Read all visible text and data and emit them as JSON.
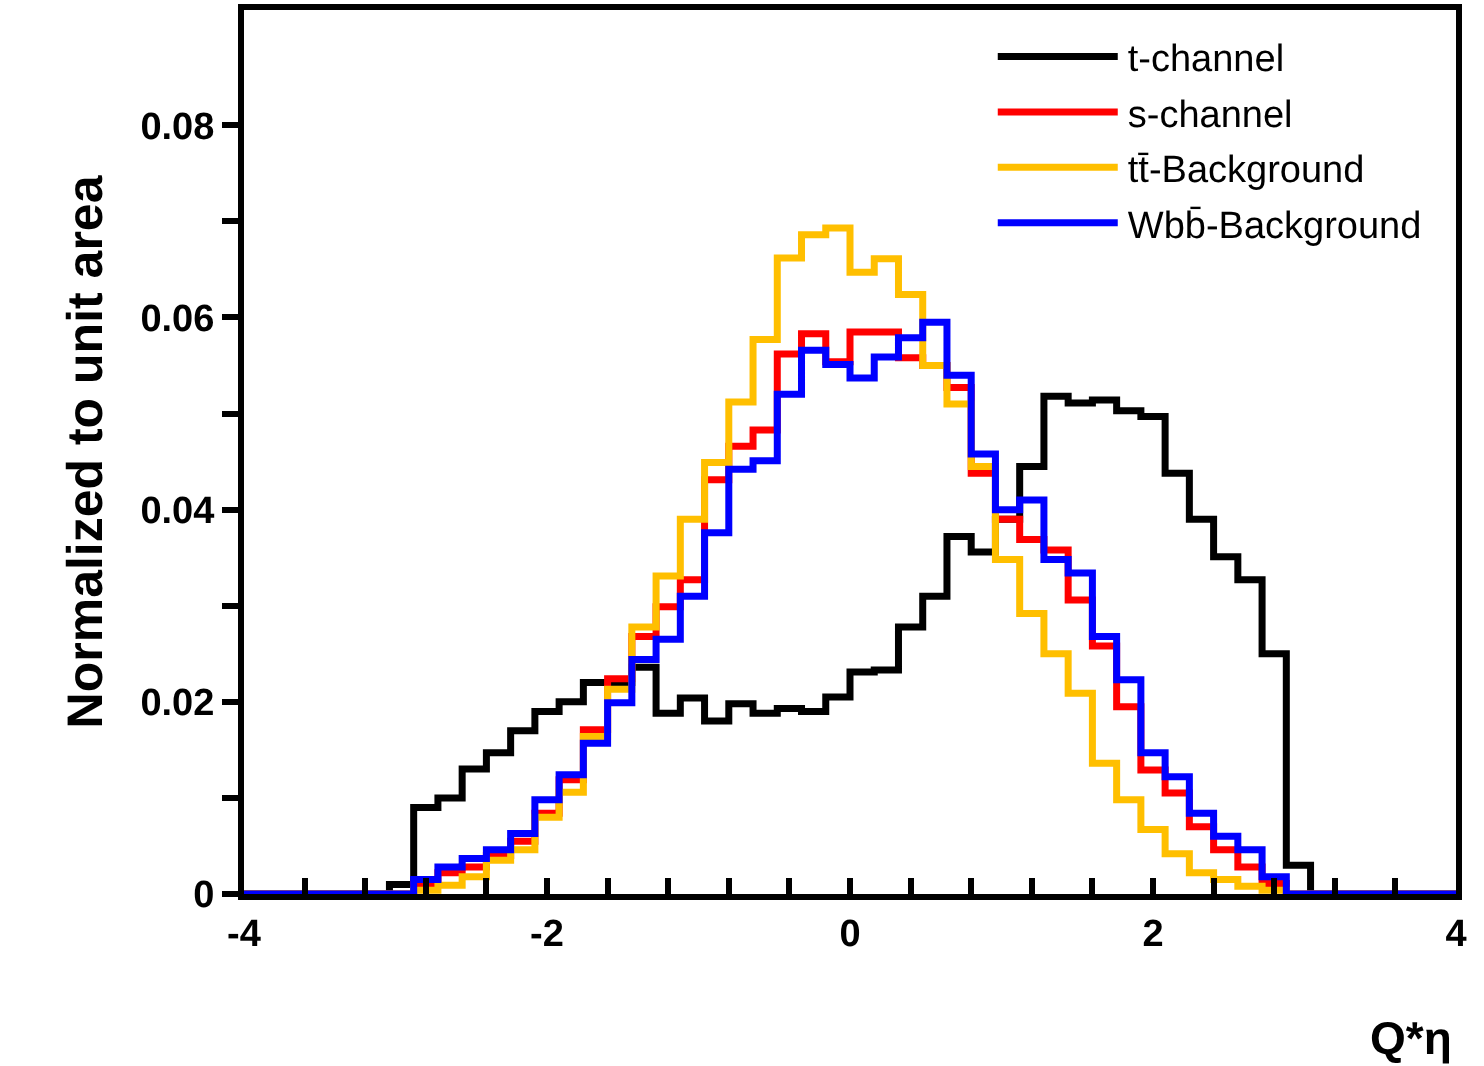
{
  "chart_data": {
    "type": "histogram",
    "xlabel": "Q*η",
    "ylabel": "Normalized to unit area",
    "bins": [
      -4,
      -3.84,
      -3.68,
      -3.52,
      -3.36,
      -3.2,
      -3.04,
      -2.88,
      -2.72,
      -2.56,
      -2.4,
      -2.24,
      -2.08,
      -1.92,
      -1.76,
      -1.6,
      -1.44,
      -1.28,
      -1.12,
      -0.96,
      -0.8,
      -0.64,
      -0.48,
      -0.32,
      -0.16,
      0,
      0.16,
      0.32,
      0.48,
      0.64,
      0.8,
      0.96,
      1.12,
      1.28,
      1.44,
      1.6,
      1.76,
      1.92,
      2.08,
      2.24,
      2.4,
      2.56,
      2.72,
      2.88,
      3.04,
      3.2,
      3.36,
      3.52,
      3.68,
      3.84,
      4
    ],
    "series": [
      {
        "name": "t-channel",
        "color": "#000000",
        "values": [
          0,
          0,
          0,
          0,
          0,
          0,
          0.001,
          0.009,
          0.01,
          0.013,
          0.0147,
          0.017,
          0.019,
          0.02,
          0.022,
          0.022,
          0.0236,
          0.0188,
          0.0204,
          0.018,
          0.0198,
          0.0188,
          0.0193,
          0.019,
          0.0205,
          0.0231,
          0.0233,
          0.0278,
          0.031,
          0.0372,
          0.0356,
          0.039,
          0.0445,
          0.0518,
          0.0511,
          0.0514,
          0.0503,
          0.0497,
          0.0438,
          0.039,
          0.0351,
          0.0327,
          0.025,
          0.003,
          0,
          0,
          0,
          0,
          0,
          0
        ]
      },
      {
        "name": "s-channel",
        "color": "#ff0000",
        "values": [
          0,
          0,
          0,
          0,
          0,
          0,
          0,
          0.001,
          0.0022,
          0.0028,
          0.004,
          0.0055,
          0.0084,
          0.0119,
          0.0171,
          0.0224,
          0.0268,
          0.0299,
          0.0327,
          0.0431,
          0.0466,
          0.0483,
          0.0562,
          0.0583,
          0.0554,
          0.0585,
          0.0585,
          0.0558,
          0.055,
          0.0527,
          0.0438,
          0.039,
          0.0369,
          0.0358,
          0.0306,
          0.0258,
          0.0195,
          0.0129,
          0.0105,
          0.007,
          0.0046,
          0.0028,
          0.0011,
          0,
          0,
          0,
          0,
          0,
          0,
          0
        ]
      },
      {
        "name": "tt̄-Background",
        "color": "#ffbf00",
        "values": [
          0,
          0,
          0,
          0,
          0,
          0,
          0,
          0.0004,
          0.0009,
          0.0018,
          0.0035,
          0.0046,
          0.008,
          0.0106,
          0.0164,
          0.0213,
          0.0278,
          0.0331,
          0.039,
          0.0449,
          0.0512,
          0.0577,
          0.0662,
          0.0686,
          0.0693,
          0.0647,
          0.0661,
          0.0624,
          0.055,
          0.051,
          0.0445,
          0.0348,
          0.0292,
          0.025,
          0.0209,
          0.0136,
          0.0098,
          0.0067,
          0.0042,
          0.0022,
          0.0015,
          0.0008,
          0.0004,
          0,
          0,
          0,
          0,
          0,
          0,
          0
        ]
      },
      {
        "name": "Wbb̄-Background",
        "color": "#0000ff",
        "values": [
          0,
          0,
          0,
          0,
          0,
          0,
          0,
          0.0015,
          0.0028,
          0.0037,
          0.0046,
          0.0063,
          0.0098,
          0.0124,
          0.0157,
          0.0199,
          0.0244,
          0.0265,
          0.031,
          0.0376,
          0.0442,
          0.0451,
          0.052,
          0.0566,
          0.0551,
          0.0537,
          0.0559,
          0.0579,
          0.0595,
          0.054,
          0.0458,
          0.04,
          0.041,
          0.0348,
          0.0334,
          0.0268,
          0.0223,
          0.0147,
          0.0122,
          0.0084,
          0.006,
          0.0046,
          0.0018,
          0,
          0,
          0,
          0,
          0,
          0,
          0
        ]
      }
    ],
    "xlim": [
      -4,
      4
    ],
    "xticks": [
      -4,
      {
        "value": -3.6,
        "label": null
      },
      {
        "value": -3.2,
        "label": null
      },
      {
        "value": -2.8,
        "label": null
      },
      {
        "value": -2.4,
        "label": null
      },
      -2,
      {
        "value": -1.6,
        "label": null
      },
      {
        "value": -1.2,
        "label": null
      },
      {
        "value": -0.8,
        "label": null
      },
      {
        "value": -0.4,
        "label": null
      },
      0,
      {
        "value": 0.4,
        "label": null
      },
      {
        "value": 0.8,
        "label": null
      },
      {
        "value": 1.2,
        "label": null
      },
      {
        "value": 1.6,
        "label": null
      },
      2,
      {
        "value": 2.4,
        "label": null
      },
      {
        "value": 2.8,
        "label": null
      },
      {
        "value": 3.2,
        "label": null
      },
      {
        "value": 3.6,
        "label": null
      },
      4
    ],
    "ylim": [
      0,
      0.092
    ],
    "yticks": [
      0,
      {
        "value": 0.01,
        "label": null
      },
      0.02,
      {
        "value": 0.03,
        "label": null
      },
      0.04,
      {
        "value": 0.05,
        "label": null
      },
      0.06,
      {
        "value": 0.07,
        "label": null
      },
      0.08
    ],
    "grid": false,
    "legend": "top right",
    "marker": "none"
  }
}
